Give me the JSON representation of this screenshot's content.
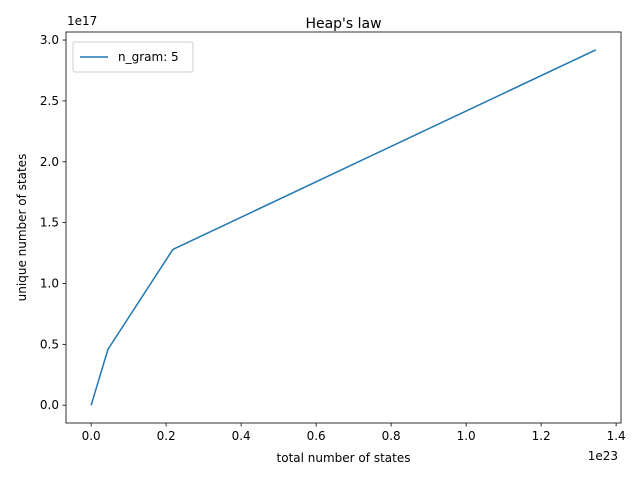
{
  "chart_data": {
    "type": "line",
    "title": "Heap's law",
    "xlabel": "total number of states",
    "ylabel": "unique number of states",
    "x_offset_label": "1e23",
    "y_offset_label": "1e17",
    "xlim": [
      -0.067,
      1.413
    ],
    "ylim": [
      -0.146,
      3.066
    ],
    "x_ticks": [
      0.0,
      0.2,
      0.4,
      0.6,
      0.8,
      1.0,
      1.2,
      1.4
    ],
    "x_tick_labels": [
      "0.0",
      "0.2",
      "0.4",
      "0.6",
      "0.8",
      "1.0",
      "1.2",
      "1.4"
    ],
    "y_ticks": [
      0.0,
      0.5,
      1.0,
      1.5,
      2.0,
      2.5,
      3.0
    ],
    "y_tick_labels": [
      "0.0",
      "0.5",
      "1.0",
      "1.5",
      "2.0",
      "2.5",
      "3.0"
    ],
    "grid": false,
    "legend_position": "top-left",
    "series": [
      {
        "name": "n_gram: 5",
        "color": "#1f77b4",
        "x": [
          0.0,
          0.045,
          0.218,
          1.346
        ],
        "y": [
          0.0,
          0.46,
          1.28,
          2.92
        ]
      }
    ]
  }
}
